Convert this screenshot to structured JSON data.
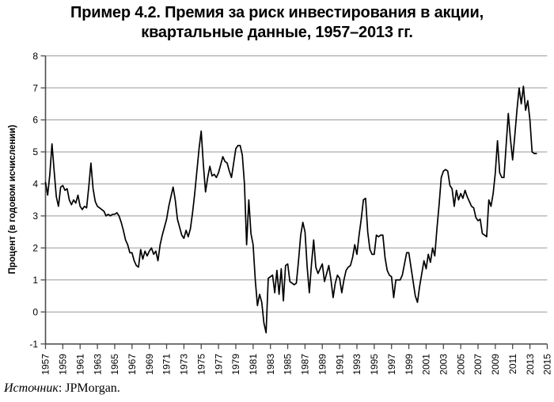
{
  "title": {
    "line1": "Пример 4.2. Премия за риск инвестирования в акции,",
    "line2": "квартальные данные, 1957–2013 гг."
  },
  "source": {
    "prefix": "Источник",
    "rest": ": JPMorgan."
  },
  "chart_data": {
    "type": "line",
    "title": "Пример 4.2. Премия за риск инвестирования в акции, квартальные данные, 1957–2013 гг.",
    "xlabel": "",
    "ylabel": "Процент (в годовом исчислении)",
    "ylim": [
      -1,
      8
    ],
    "grid": "horizontal",
    "legend_position": "none",
    "line_color": "#000000",
    "grid_color": "#999999",
    "axis_color": "#4d4d4d",
    "yticks": [
      -1,
      0,
      1,
      2,
      3,
      4,
      5,
      6,
      7,
      8
    ],
    "xticks": [
      1957,
      1959,
      1961,
      1963,
      1965,
      1967,
      1969,
      1971,
      1973,
      1975,
      1977,
      1979,
      1981,
      1983,
      1985,
      1987,
      1989,
      1991,
      1993,
      1995,
      1997,
      1999,
      2001,
      2003,
      2005,
      2007,
      2009,
      2011,
      2013,
      2015
    ],
    "series": [
      {
        "name": "Премия за риск инвестирования в акции",
        "start_year": 1957,
        "frequency": "quarterly",
        "values": [
          4.05,
          3.65,
          4.3,
          5.25,
          4.4,
          3.6,
          3.3,
          3.9,
          3.95,
          3.8,
          3.85,
          3.5,
          3.35,
          3.5,
          3.4,
          3.65,
          3.3,
          3.2,
          3.3,
          3.25,
          3.9,
          4.65,
          3.85,
          3.45,
          3.3,
          3.25,
          3.2,
          3.15,
          3.0,
          3.05,
          3.0,
          3.05,
          3.05,
          3.1,
          3.0,
          2.8,
          2.55,
          2.25,
          2.1,
          1.85,
          1.85,
          1.6,
          1.45,
          1.4,
          1.95,
          1.65,
          1.9,
          1.75,
          1.9,
          2.0,
          1.8,
          1.9,
          1.6,
          2.1,
          2.4,
          2.65,
          2.9,
          3.3,
          3.6,
          3.9,
          3.5,
          2.9,
          2.65,
          2.4,
          2.3,
          2.55,
          2.35,
          2.6,
          3.1,
          3.7,
          4.4,
          5.1,
          5.65,
          4.6,
          3.75,
          4.2,
          4.55,
          4.25,
          4.3,
          4.2,
          4.35,
          4.6,
          4.85,
          4.7,
          4.65,
          4.4,
          4.2,
          4.65,
          5.1,
          5.2,
          5.2,
          4.9,
          4.0,
          2.1,
          3.5,
          2.45,
          2.1,
          1.0,
          0.2,
          0.55,
          0.3,
          -0.35,
          -0.65,
          1.05,
          1.1,
          1.15,
          0.6,
          1.3,
          0.55,
          1.35,
          0.35,
          1.45,
          1.5,
          0.95,
          0.9,
          0.85,
          0.9,
          1.6,
          2.4,
          2.8,
          2.5,
          1.4,
          0.6,
          1.5,
          2.25,
          1.4,
          1.2,
          1.35,
          1.5,
          0.95,
          1.2,
          1.45,
          1.0,
          0.45,
          0.9,
          1.15,
          1.05,
          0.6,
          1.0,
          1.3,
          1.4,
          1.45,
          1.7,
          2.1,
          1.8,
          2.4,
          2.9,
          3.5,
          3.55,
          2.5,
          1.95,
          1.8,
          1.8,
          2.4,
          2.35,
          2.4,
          2.4,
          1.7,
          1.3,
          1.15,
          1.1,
          0.45,
          1.0,
          1.0,
          1.0,
          1.15,
          1.5,
          1.85,
          1.85,
          1.4,
          0.95,
          0.5,
          0.3,
          0.8,
          1.2,
          1.6,
          1.35,
          1.8,
          1.55,
          2.0,
          1.75,
          2.6,
          3.35,
          4.2,
          4.4,
          4.45,
          4.4,
          3.95,
          3.85,
          3.3,
          3.8,
          3.5,
          3.7,
          3.55,
          3.8,
          3.6,
          3.45,
          3.3,
          3.25,
          2.95,
          2.85,
          2.9,
          2.45,
          2.4,
          2.35,
          3.5,
          3.3,
          3.7,
          4.35,
          5.35,
          4.35,
          4.2,
          4.2,
          5.2,
          6.2,
          5.4,
          4.75,
          5.5,
          6.3,
          7.0,
          6.5,
          7.05,
          6.3,
          6.6,
          6.0,
          5.0,
          4.95,
          4.95
        ]
      }
    ]
  }
}
